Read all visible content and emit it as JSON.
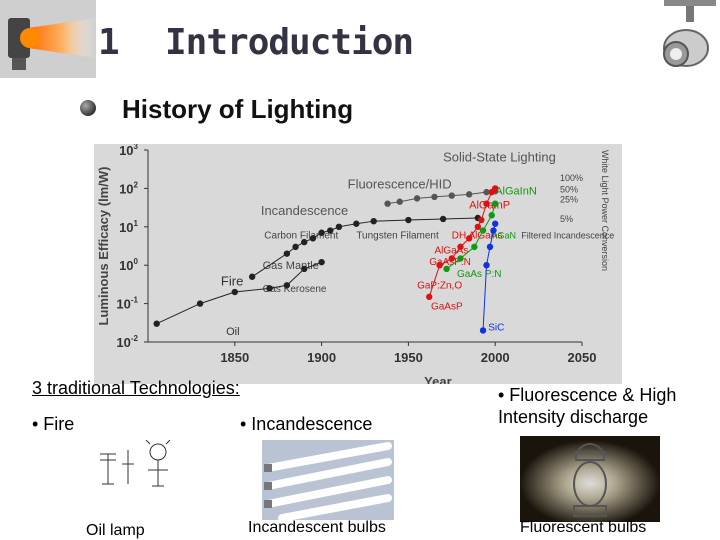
{
  "header": {
    "number": "1",
    "title": "Introduction"
  },
  "subtitle": "History of Lighting",
  "chart_data": {
    "type": "scatter",
    "xlabel": "Year",
    "ylabel": "Luminous Efficacy (lm/W)",
    "y_scale": "log",
    "xlim": [
      1800,
      2050
    ],
    "ylim": [
      0.01,
      1000
    ],
    "x_ticks": [
      "1850",
      "1900",
      "1950",
      "2000",
      "2050"
    ],
    "y_ticks": [
      "10^-2",
      "10^-1",
      "10^0",
      "10^1",
      "10^2",
      "10^3"
    ],
    "right_axis_label": "White Light Power Conversion",
    "right_ticks": [
      "100%",
      "50%",
      "25%",
      "5%"
    ],
    "series": [
      {
        "name": "Fluorescence/HID",
        "color": "#555555",
        "points": [
          [
            1938,
            40
          ],
          [
            1945,
            45
          ],
          [
            1955,
            55
          ],
          [
            1965,
            60
          ],
          [
            1975,
            65
          ],
          [
            1985,
            70
          ],
          [
            1995,
            80
          ],
          [
            2000,
            85
          ]
        ]
      },
      {
        "name": "Incandescence",
        "color": "#222222",
        "points": [
          [
            1860,
            0.5
          ],
          [
            1880,
            2
          ],
          [
            1885,
            3
          ],
          [
            1890,
            4
          ],
          [
            1895,
            5
          ],
          [
            1900,
            7
          ],
          [
            1905,
            8
          ],
          [
            1910,
            10
          ],
          [
            1920,
            12
          ],
          [
            1930,
            14
          ],
          [
            1950,
            15
          ],
          [
            1970,
            16
          ],
          [
            1990,
            17
          ]
        ]
      },
      {
        "name": "Fire / Gas",
        "color": "#222222",
        "points": [
          [
            1805,
            0.03
          ],
          [
            1830,
            0.1
          ],
          [
            1850,
            0.2
          ],
          [
            1870,
            0.25
          ],
          [
            1880,
            0.3
          ],
          [
            1890,
            0.8
          ],
          [
            1900,
            1.2
          ]
        ]
      },
      {
        "name": "Solid-State Lighting (red)",
        "color": "#dd1111",
        "points": [
          [
            1962,
            0.15
          ],
          [
            1968,
            1
          ],
          [
            1975,
            1.5
          ],
          [
            1980,
            3
          ],
          [
            1985,
            5
          ],
          [
            1990,
            10
          ],
          [
            1992,
            15
          ],
          [
            1995,
            40
          ],
          [
            1998,
            80
          ],
          [
            2000,
            100
          ]
        ]
      },
      {
        "name": "Solid-State Lighting (green)",
        "color": "#119911",
        "points": [
          [
            1972,
            0.8
          ],
          [
            1980,
            1.5
          ],
          [
            1988,
            3
          ],
          [
            1993,
            8
          ],
          [
            1998,
            20
          ],
          [
            2000,
            40
          ]
        ]
      },
      {
        "name": "Solid-State Lighting (blue)",
        "color": "#1133dd",
        "points": [
          [
            1993,
            0.02
          ],
          [
            1995,
            1
          ],
          [
            1997,
            3
          ],
          [
            1999,
            8
          ],
          [
            2000,
            12
          ]
        ]
      }
    ],
    "annotations": [
      "Solid-State Lighting",
      "Fluorescence/HID",
      "Incandescence",
      "Carbon Filament",
      "Tungsten Filament",
      "Gas Mantle",
      "Fire",
      "Gas Kerosene",
      "Oil",
      "AlGaInP",
      "AlGaInN",
      "DH AlGaAs",
      "AlGaAs",
      "GaAsP:N",
      "GaAs P:N",
      "GaP:Zn,O",
      "GaAsP",
      "SiC",
      "InGaN",
      "Filtered Incandescence"
    ]
  },
  "lower": {
    "trad_title": "3 traditional Technologies:",
    "fire": "• Fire",
    "incandescence": "• Incandescence",
    "fluorescence": "• Fluorescence & High Intensity discharge",
    "cap_oil": "Oil lamp",
    "cap_incandescent": "Incandescent bulbs",
    "cap_fluorescent": "Fluorescent bulbs"
  },
  "colors": {
    "title": "#333344",
    "red": "#dd1111",
    "green": "#119911",
    "blue": "#1133dd"
  }
}
